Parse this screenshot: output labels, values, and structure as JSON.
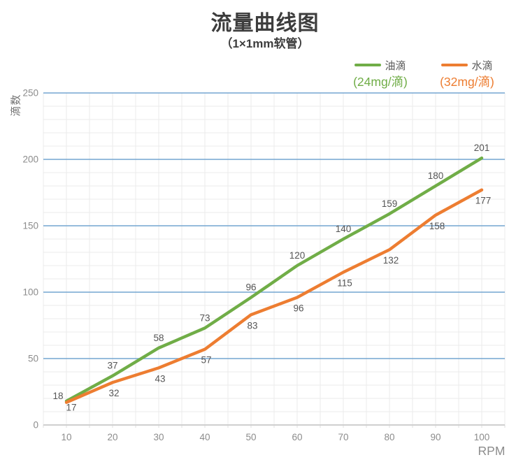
{
  "chart_data": {
    "type": "line",
    "title": "流量曲线图",
    "subtitle": "（1×1mm软管）",
    "x": [
      10,
      20,
      30,
      40,
      50,
      60,
      70,
      80,
      90,
      100
    ],
    "series": [
      {
        "name": "油滴",
        "unit_label": "(24mg/滴)",
        "color": "#70ad47",
        "values": [
          18,
          37,
          58,
          73,
          96,
          120,
          140,
          159,
          180,
          201
        ],
        "label_offset": [
          0,
          -10
        ],
        "first_label_offset": [
          -12,
          -3
        ]
      },
      {
        "name": "水滴",
        "unit_label": "(32mg/滴)",
        "color": "#ed7d31",
        "values": [
          17,
          32,
          43,
          57,
          83,
          96,
          115,
          132,
          158,
          177
        ],
        "label_offset": [
          2,
          20
        ],
        "first_label_offset": [
          7,
          12
        ]
      }
    ],
    "xlabel": "RPM",
    "ylabel": "滴数",
    "xlim": [
      5,
      105
    ],
    "ylim": [
      0,
      250
    ],
    "x_tick_step": 10,
    "x_minor_step": 5,
    "y_major_step": 50,
    "y_minor_step": 10,
    "grid": true,
    "legend_position": "top-right",
    "colors": {
      "major_grid": "#74a5d1",
      "minor_grid": "#ebebeb",
      "axis_line": "#cfcfcf",
      "tick_text": "#8c8c8c",
      "data_label": "#555555",
      "title_text": "#3d3d3d"
    }
  }
}
